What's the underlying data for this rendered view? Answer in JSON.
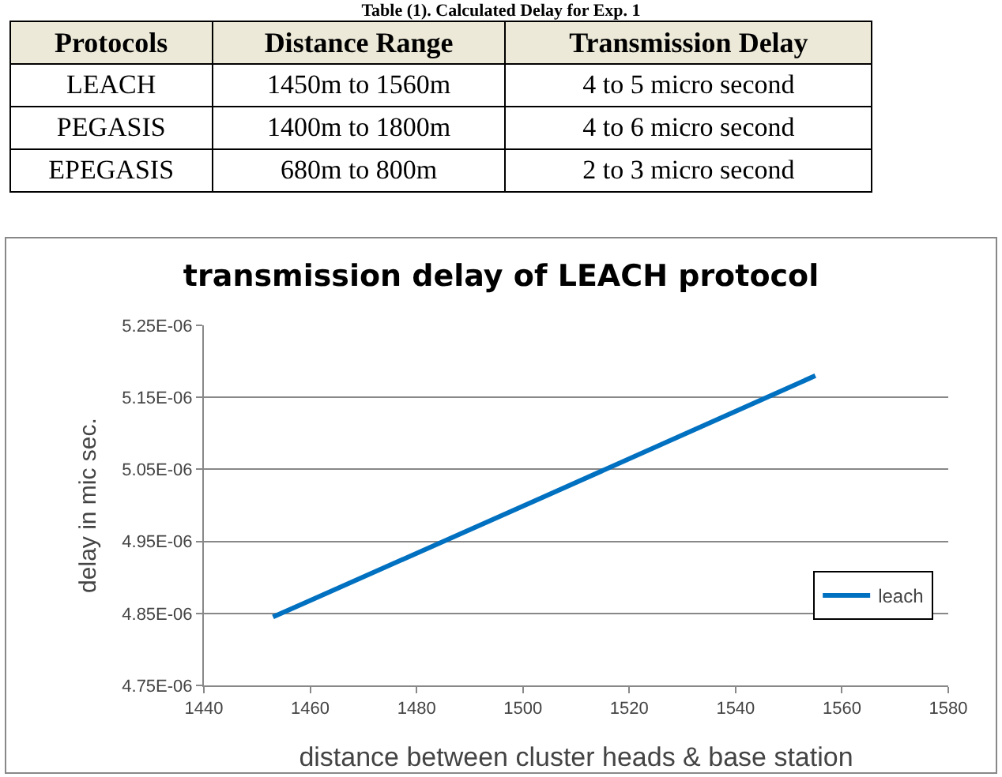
{
  "chart_data": [
    {
      "type": "other",
      "title": "Table (1). Calculated Delay for Exp. 1",
      "categories": [
        "Protocols",
        "Distance Range",
        "Transmission Delay"
      ],
      "y_categories": [
        "LEACH",
        "PEGASIS",
        "EPEGASIS"
      ],
      "cell_labels": [
        [
          "1450m to 1560m",
          "4 to 5 micro second"
        ],
        [
          "1400m to 1800m",
          "4 to 6 micro second"
        ],
        [
          "680m to 800m",
          "2 to 3 micro second"
        ]
      ]
    },
    {
      "type": "line",
      "title": "transmission delay of LEACH protocol",
      "xlabel": "distance between cluster heads & base station",
      "ylabel": "delay in mic sec.",
      "x": [
        1453,
        1504,
        1555
      ],
      "series": [
        {
          "name": "leach",
          "color": "#0070c0",
          "values": [
            4.845e-06,
            5.012e-06,
            5.18e-06
          ]
        }
      ],
      "xlim": [
        1440,
        1580
      ],
      "xticks": [
        1440,
        1460,
        1480,
        1500,
        1520,
        1540,
        1560,
        1580
      ],
      "ylim": [
        4.75e-06,
        5.25e-06
      ],
      "yticks": [
        {
          "value": 4.75e-06,
          "label": "4.75E-06"
        },
        {
          "value": 4.85e-06,
          "label": "4.85E-06"
        },
        {
          "value": 4.95e-06,
          "label": "4.95E-06"
        },
        {
          "value": 5.05e-06,
          "label": "5.05E-06"
        },
        {
          "value": 5.15e-06,
          "label": "5.15E-06"
        },
        {
          "value": 5.25e-06,
          "label": "5.25E-06"
        }
      ],
      "grid": "y",
      "legend": "right",
      "marker": "none",
      "line_style": "solid"
    }
  ]
}
